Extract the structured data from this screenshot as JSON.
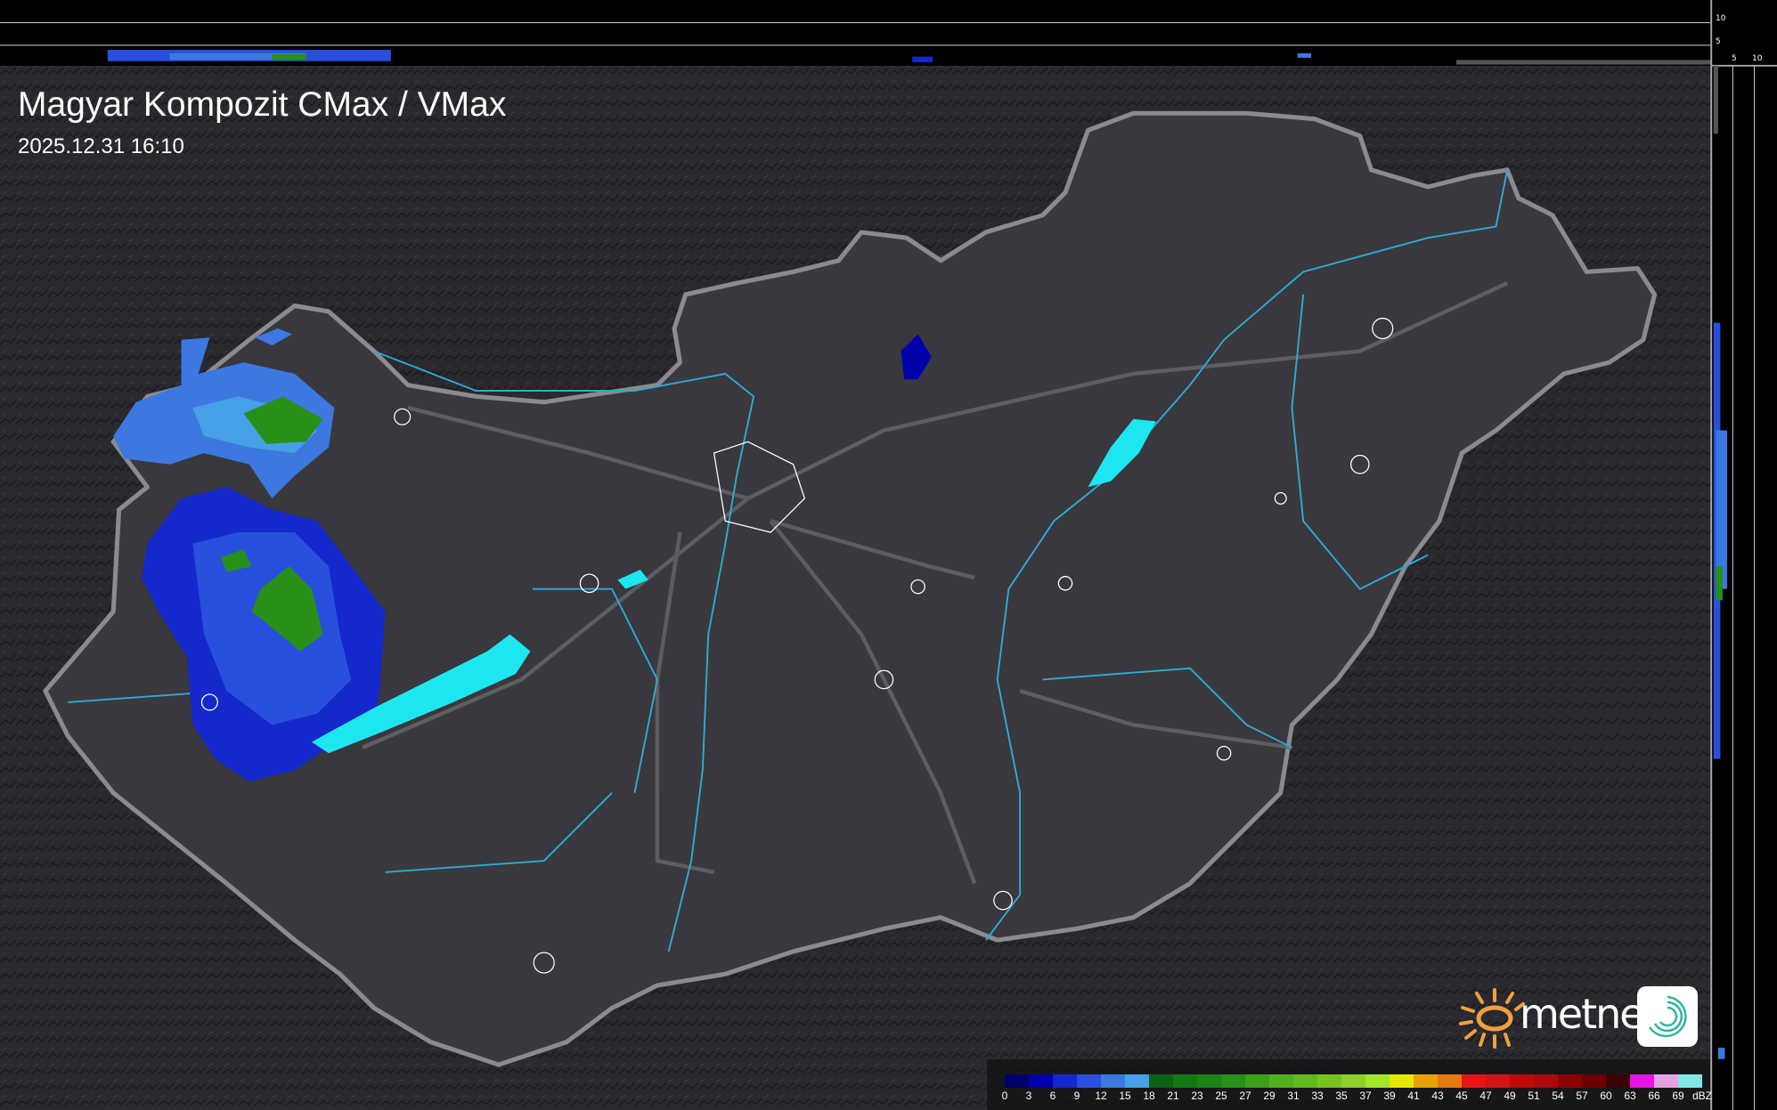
{
  "header": {
    "title": "Magyar Kompozit CMax / VMax",
    "timestamp": "2025.12.31 16:10"
  },
  "profile_scales": {
    "top_ticks": [
      "10",
      "5"
    ],
    "right_ticks": [
      "5",
      "10"
    ]
  },
  "legend": {
    "unit": "dBZ",
    "labels": [
      "0",
      "3",
      "6",
      "9",
      "12",
      "15",
      "18",
      "21",
      "23",
      "25",
      "27",
      "29",
      "31",
      "33",
      "35",
      "37",
      "39",
      "41",
      "43",
      "45",
      "47",
      "49",
      "51",
      "54",
      "57",
      "60",
      "63",
      "66",
      "69"
    ],
    "colors": [
      "#00006a",
      "#0000aa",
      "#1428cc",
      "#2850dc",
      "#3c78e0",
      "#46a0e6",
      "#0a6414",
      "#147814",
      "#1e8214",
      "#289018",
      "#3ca018",
      "#50b01e",
      "#64b81e",
      "#78c41e",
      "#8cd028",
      "#a0e628",
      "#e6e600",
      "#e6a000",
      "#e67814",
      "#e61414",
      "#d21414",
      "#be0a0a",
      "#aa0a0a",
      "#8c0000",
      "#6e0000",
      "#3c0000",
      "#e614e6",
      "#e6a0e6",
      "#82e6e6"
    ]
  },
  "branding": {
    "logo_text": "metnet",
    "sun_color": "#f0a040",
    "swirl_color": "#2fb4a0"
  },
  "colors": {
    "terrain": "#2a2a2e",
    "country_fill": "#3a3a40",
    "border": "#8a8a90",
    "rivers": "#2fa9d1",
    "roads": "#6a6a70",
    "cities": "#ffffff"
  }
}
